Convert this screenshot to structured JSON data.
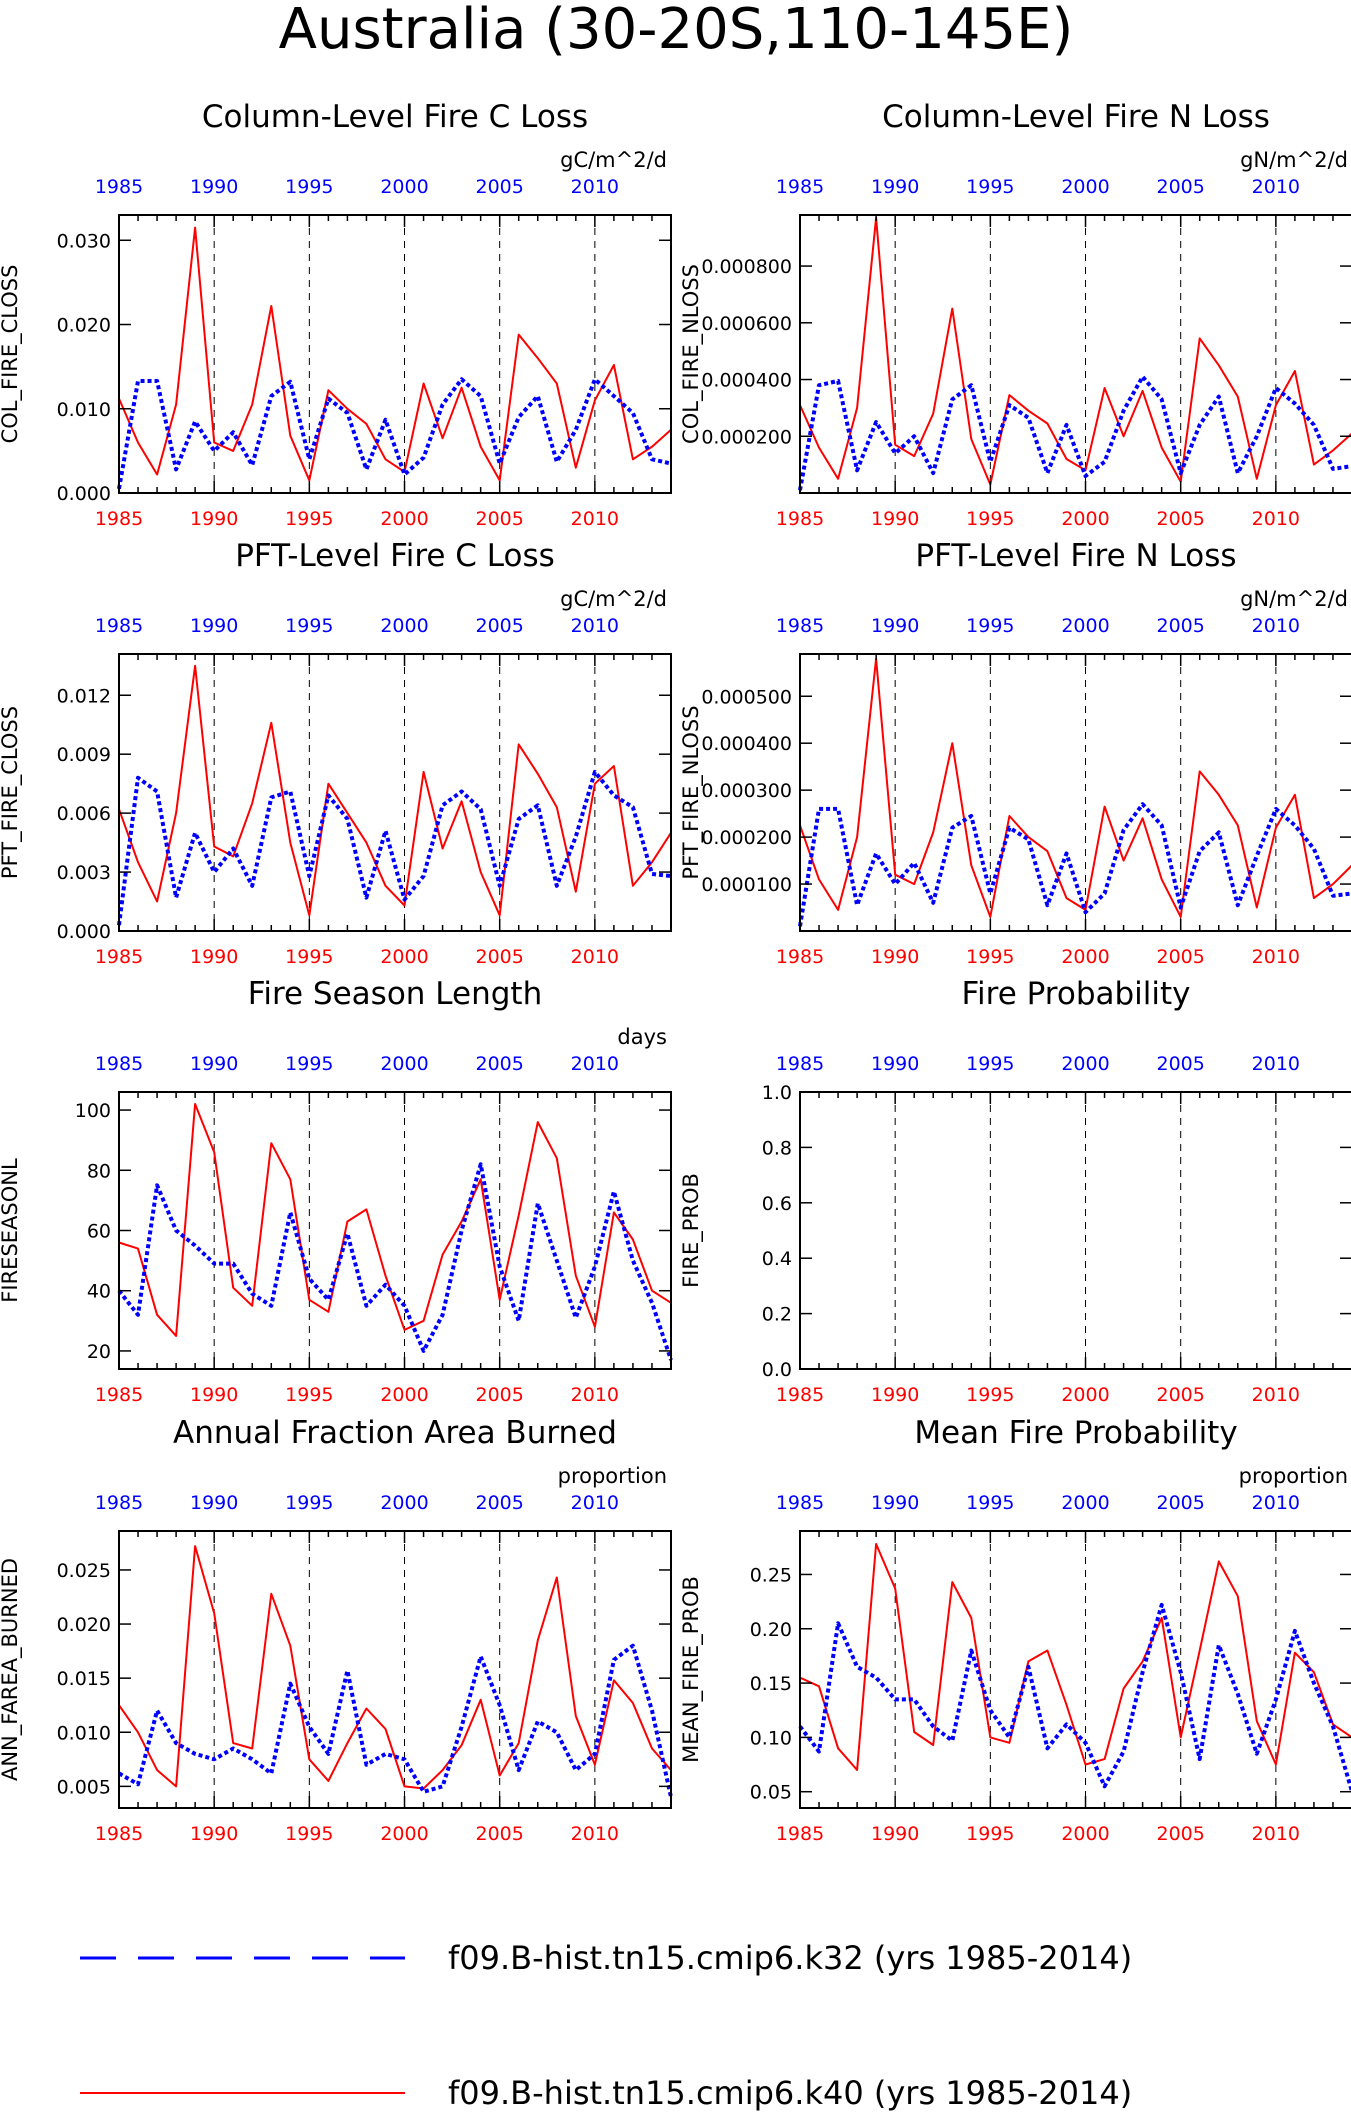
{
  "figure_title": "Australia (30-20S,110-145E)",
  "colors": {
    "case_k40": "#ff0000",
    "case_k32": "#0000ff",
    "bottom_axis": "#ff0000",
    "top_axis": "#0000ff",
    "frame": "#000000"
  },
  "legend": [
    {
      "label": "f09.B-hist.tn15.cmip6.k32 (yrs 1985-2014)",
      "color": "#0000ff",
      "style": "dotted"
    },
    {
      "label": "f09.B-hist.tn15.cmip6.k40 (yrs 1985-2014)",
      "color": "#ff0000",
      "style": "solid"
    }
  ],
  "chart_data": [
    {
      "type": "line",
      "title": "Column-Level Fire C Loss",
      "units": "gC/m^2/d",
      "ylabel": "COL_FIRE_CLOSS",
      "xlim": [
        1985,
        2014
      ],
      "ylim": [
        0,
        0.033
      ],
      "yticks": [
        "0.000",
        "0.010",
        "0.020",
        "0.030"
      ],
      "ytick_values": [
        0,
        0.01,
        0.02,
        0.03
      ],
      "xticks": [
        1985,
        1990,
        1995,
        2000,
        2005,
        2010
      ],
      "x": [
        1985,
        1986,
        1987,
        1988,
        1989,
        1990,
        1991,
        1992,
        1993,
        1994,
        1995,
        1996,
        1997,
        1998,
        1999,
        2000,
        2001,
        2002,
        2003,
        2004,
        2005,
        2006,
        2007,
        2008,
        2009,
        2010,
        2011,
        2012,
        2013,
        2014
      ],
      "series": [
        {
          "name": "f09.B-hist.tn15.cmip6.k40",
          "color": "#ff0000",
          "style": "solid",
          "values": [
            0.0112,
            0.006,
            0.0022,
            0.0105,
            0.0315,
            0.006,
            0.005,
            0.0105,
            0.0222,
            0.0068,
            0.0015,
            0.0122,
            0.01,
            0.0082,
            0.004,
            0.0025,
            0.013,
            0.0065,
            0.0125,
            0.0055,
            0.0015,
            0.0188,
            0.016,
            0.013,
            0.003,
            0.011,
            0.0152,
            0.004,
            0.0055,
            0.0075
          ]
        },
        {
          "name": "f09.B-hist.tn15.cmip6.k32",
          "color": "#0000ff",
          "style": "dotted",
          "values": [
            0.0005,
            0.0133,
            0.0133,
            0.0028,
            0.0085,
            0.005,
            0.0072,
            0.0033,
            0.0115,
            0.0132,
            0.004,
            0.0112,
            0.0095,
            0.0028,
            0.0087,
            0.0022,
            0.0042,
            0.0105,
            0.0135,
            0.0115,
            0.0035,
            0.009,
            0.0115,
            0.0037,
            0.0075,
            0.0135,
            0.0115,
            0.0095,
            0.004,
            0.0035
          ]
        }
      ]
    },
    {
      "type": "line",
      "title": "Column-Level Fire N Loss",
      "units": "gN/m^2/d",
      "ylabel": "COL_FIRE_NLOSS",
      "xlim": [
        1985,
        2014
      ],
      "ylim": [
        0,
        0.00098
      ],
      "yticks": [
        "0.000200",
        "0.000400",
        "0.000600",
        "0.000800"
      ],
      "ytick_values": [
        0.0002,
        0.0004,
        0.0006,
        0.0008
      ],
      "xticks": [
        1985,
        1990,
        1995,
        2000,
        2005,
        2010
      ],
      "x": [
        1985,
        1986,
        1987,
        1988,
        1989,
        1990,
        1991,
        1992,
        1993,
        1994,
        1995,
        1996,
        1997,
        1998,
        1999,
        2000,
        2001,
        2002,
        2003,
        2004,
        2005,
        2006,
        2007,
        2008,
        2009,
        2010,
        2011,
        2012,
        2013,
        2014
      ],
      "series": [
        {
          "name": "f09.B-hist.tn15.cmip6.k40",
          "color": "#ff0000",
          "style": "solid",
          "values": [
            0.00031,
            0.00016,
            5e-05,
            0.0003,
            0.00097,
            0.00017,
            0.00013,
            0.00028,
            0.00065,
            0.00019,
            3e-05,
            0.000345,
            0.00029,
            0.000245,
            0.00012,
            8e-05,
            0.00037,
            0.0002,
            0.00036,
            0.00016,
            4e-05,
            0.000545,
            0.00045,
            0.00034,
            5e-05,
            0.00031,
            0.00043,
            0.0001,
            0.00015,
            0.00021
          ]
        },
        {
          "name": "f09.B-hist.tn15.cmip6.k32",
          "color": "#0000ff",
          "style": "dotted",
          "values": [
            1e-05,
            0.00038,
            0.000395,
            8e-05,
            0.00025,
            0.00014,
            0.0002,
            7e-05,
            0.00033,
            0.00038,
            0.00011,
            0.00031,
            0.000265,
            7e-05,
            0.00024,
            6e-05,
            0.00011,
            0.00029,
            0.00041,
            0.00033,
            7e-05,
            0.00024,
            0.00034,
            7e-05,
            0.0002,
            0.00037,
            0.000315,
            0.00024,
            8.5e-05,
            9.5e-05
          ]
        }
      ]
    },
    {
      "type": "line",
      "title": "PFT-Level Fire C Loss",
      "units": "gC/m^2/d",
      "ylabel": "PFT_FIRE_CLOSS",
      "xlim": [
        1985,
        2014
      ],
      "ylim": [
        0,
        0.0141
      ],
      "yticks": [
        "0.000",
        "0.003",
        "0.006",
        "0.009",
        "0.012"
      ],
      "ytick_values": [
        0,
        0.003,
        0.006,
        0.009,
        0.012
      ],
      "xticks": [
        1985,
        1990,
        1995,
        2000,
        2005,
        2010
      ],
      "x": [
        1985,
        1986,
        1987,
        1988,
        1989,
        1990,
        1991,
        1992,
        1993,
        1994,
        1995,
        1996,
        1997,
        1998,
        1999,
        2000,
        2001,
        2002,
        2003,
        2004,
        2005,
        2006,
        2007,
        2008,
        2009,
        2010,
        2011,
        2012,
        2013,
        2014
      ],
      "series": [
        {
          "name": "f09.B-hist.tn15.cmip6.k40",
          "color": "#ff0000",
          "style": "solid",
          "values": [
            0.0062,
            0.0035,
            0.0015,
            0.006,
            0.0135,
            0.0043,
            0.0038,
            0.0065,
            0.0106,
            0.0045,
            0.0008,
            0.0075,
            0.006,
            0.0045,
            0.0023,
            0.0013,
            0.0081,
            0.0042,
            0.0066,
            0.003,
            0.0008,
            0.0095,
            0.008,
            0.0063,
            0.002,
            0.0075,
            0.0084,
            0.0023,
            0.0035,
            0.005
          ]
        },
        {
          "name": "f09.B-hist.tn15.cmip6.k32",
          "color": "#0000ff",
          "style": "dotted",
          "values": [
            0.0003,
            0.0078,
            0.0071,
            0.0017,
            0.005,
            0.003,
            0.0042,
            0.0023,
            0.0068,
            0.0071,
            0.0028,
            0.0069,
            0.0057,
            0.0017,
            0.0051,
            0.0016,
            0.0028,
            0.0064,
            0.0071,
            0.0062,
            0.0023,
            0.0057,
            0.0064,
            0.0023,
            0.0048,
            0.0081,
            0.0069,
            0.0063,
            0.0029,
            0.0028
          ]
        }
      ]
    },
    {
      "type": "line",
      "title": "PFT-Level Fire N Loss",
      "units": "gN/m^2/d",
      "ylabel": "PFT_FIRE_NLOSS",
      "xlim": [
        1985,
        2014
      ],
      "ylim": [
        0,
        0.00059
      ],
      "yticks": [
        "0.000100",
        "0.000200",
        "0.000300",
        "0.000400",
        "0.000500"
      ],
      "ytick_values": [
        0.0001,
        0.0002,
        0.0003,
        0.0004,
        0.0005
      ],
      "xticks": [
        1985,
        1990,
        1995,
        2000,
        2005,
        2010
      ],
      "x": [
        1985,
        1986,
        1987,
        1988,
        1989,
        1990,
        1991,
        1992,
        1993,
        1994,
        1995,
        1996,
        1997,
        1998,
        1999,
        2000,
        2001,
        2002,
        2003,
        2004,
        2005,
        2006,
        2007,
        2008,
        2009,
        2010,
        2011,
        2012,
        2013,
        2014
      ],
      "series": [
        {
          "name": "f09.B-hist.tn15.cmip6.k40",
          "color": "#ff0000",
          "style": "solid",
          "values": [
            0.000225,
            0.00011,
            4.5e-05,
            0.0002,
            0.00058,
            0.00012,
            0.0001,
            0.00021,
            0.0004,
            0.00014,
            3e-05,
            0.000245,
            0.0002,
            0.00017,
            7e-05,
            4.5e-05,
            0.000265,
            0.00015,
            0.00024,
            0.00011,
            3e-05,
            0.00034,
            0.00029,
            0.000225,
            5e-05,
            0.00022,
            0.00029,
            7e-05,
            0.0001,
            0.00014
          ]
        },
        {
          "name": "f09.B-hist.tn15.cmip6.k32",
          "color": "#0000ff",
          "style": "dotted",
          "values": [
            1e-05,
            0.00026,
            0.00026,
            5.5e-05,
            0.000165,
            0.0001,
            0.000145,
            6e-05,
            0.00022,
            0.000245,
            8e-05,
            0.00022,
            0.000195,
            5.5e-05,
            0.000165,
            4e-05,
            8e-05,
            0.000215,
            0.00027,
            0.000225,
            5e-05,
            0.00017,
            0.00021,
            5.5e-05,
            0.00016,
            0.00026,
            0.000225,
            0.000175,
            7.5e-05,
            8e-05
          ]
        }
      ]
    },
    {
      "type": "line",
      "title": "Fire Season Length",
      "units": "days",
      "ylabel": "FIRESEASONL",
      "xlim": [
        1985,
        2014
      ],
      "ylim": [
        14,
        106
      ],
      "yticks": [
        "20",
        "40",
        "60",
        "80",
        "100"
      ],
      "ytick_values": [
        20,
        40,
        60,
        80,
        100
      ],
      "xticks": [
        1985,
        1990,
        1995,
        2000,
        2005,
        2010
      ],
      "x": [
        1985,
        1986,
        1987,
        1988,
        1989,
        1990,
        1991,
        1992,
        1993,
        1994,
        1995,
        1996,
        1997,
        1998,
        1999,
        2000,
        2001,
        2002,
        2003,
        2004,
        2005,
        2006,
        2007,
        2008,
        2009,
        2010,
        2011,
        2012,
        2013,
        2014
      ],
      "series": [
        {
          "name": "f09.B-hist.tn15.cmip6.k40",
          "color": "#ff0000",
          "style": "solid",
          "values": [
            56,
            54,
            32,
            25,
            102,
            86,
            41,
            35,
            89,
            77,
            37,
            33,
            63,
            67,
            45,
            27,
            30,
            52,
            63,
            77,
            37,
            65,
            96,
            84,
            45,
            28,
            66,
            57,
            40,
            36
          ]
        },
        {
          "name": "f09.B-hist.tn15.cmip6.k32",
          "color": "#0000ff",
          "style": "dotted",
          "values": [
            40,
            32,
            75,
            60,
            55,
            49,
            49,
            39,
            35,
            66,
            44,
            37,
            59,
            35,
            42,
            35,
            20,
            32,
            60,
            82,
            48,
            30,
            69,
            50,
            31,
            48,
            73,
            50,
            36,
            17
          ]
        }
      ]
    },
    {
      "type": "line",
      "title": "Fire Probability",
      "units": "",
      "ylabel": "FIRE_PROB",
      "xlim": [
        1985,
        2014
      ],
      "ylim": [
        0,
        1
      ],
      "yticks": [
        "0.0",
        "0.2",
        "0.4",
        "0.6",
        "0.8",
        "1.0"
      ],
      "ytick_values": [
        0,
        0.2,
        0.4,
        0.6,
        0.8,
        1.0
      ],
      "xticks": [
        1985,
        1990,
        1995,
        2000,
        2005,
        2010
      ],
      "x": [],
      "series": []
    },
    {
      "type": "line",
      "title": "Annual Fraction Area Burned",
      "units": "proportion",
      "ylabel": "ANN_FAREA_BURNED",
      "xlim": [
        1985,
        2014
      ],
      "ylim": [
        0.003,
        0.0286
      ],
      "yticks": [
        "0.005",
        "0.010",
        "0.015",
        "0.020",
        "0.025"
      ],
      "ytick_values": [
        0.005,
        0.01,
        0.015,
        0.02,
        0.025
      ],
      "xticks": [
        1985,
        1990,
        1995,
        2000,
        2005,
        2010
      ],
      "x": [
        1985,
        1986,
        1987,
        1988,
        1989,
        1990,
        1991,
        1992,
        1993,
        1994,
        1995,
        1996,
        1997,
        1998,
        1999,
        2000,
        2001,
        2002,
        2003,
        2004,
        2005,
        2006,
        2007,
        2008,
        2009,
        2010,
        2011,
        2012,
        2013,
        2014
      ],
      "series": [
        {
          "name": "f09.B-hist.tn15.cmip6.k40",
          "color": "#ff0000",
          "style": "solid",
          "values": [
            0.0125,
            0.01,
            0.0065,
            0.005,
            0.0272,
            0.021,
            0.009,
            0.0085,
            0.0228,
            0.018,
            0.0075,
            0.0055,
            0.009,
            0.0122,
            0.0103,
            0.005,
            0.0048,
            0.0065,
            0.0088,
            0.013,
            0.006,
            0.009,
            0.0185,
            0.0243,
            0.0115,
            0.007,
            0.0148,
            0.0127,
            0.0085,
            0.0065
          ]
        },
        {
          "name": "f09.B-hist.tn15.cmip6.k32",
          "color": "#0000ff",
          "style": "dotted",
          "values": [
            0.0062,
            0.0052,
            0.012,
            0.009,
            0.008,
            0.0075,
            0.0085,
            0.0075,
            0.0062,
            0.0145,
            0.0105,
            0.008,
            0.0157,
            0.007,
            0.008,
            0.0075,
            0.0045,
            0.005,
            0.0105,
            0.017,
            0.0125,
            0.0065,
            0.011,
            0.01,
            0.0065,
            0.008,
            0.0167,
            0.018,
            0.012,
            0.004
          ]
        }
      ]
    },
    {
      "type": "line",
      "title": "Mean Fire Probability",
      "units": "proportion",
      "ylabel": "MEAN_FIRE_PROB",
      "xlim": [
        1985,
        2014
      ],
      "ylim": [
        0.035,
        0.29
      ],
      "yticks": [
        "0.05",
        "0.10",
        "0.15",
        "0.20",
        "0.25"
      ],
      "ytick_values": [
        0.05,
        0.1,
        0.15,
        0.2,
        0.25
      ],
      "xticks": [
        1985,
        1990,
        1995,
        2000,
        2005,
        2010
      ],
      "x": [
        1985,
        1986,
        1987,
        1988,
        1989,
        1990,
        1991,
        1992,
        1993,
        1994,
        1995,
        1996,
        1997,
        1998,
        1999,
        2000,
        2001,
        2002,
        2003,
        2004,
        2005,
        2006,
        2007,
        2008,
        2009,
        2010,
        2011,
        2012,
        2013,
        2014
      ],
      "series": [
        {
          "name": "f09.B-hist.tn15.cmip6.k40",
          "color": "#ff0000",
          "style": "solid",
          "values": [
            0.155,
            0.147,
            0.09,
            0.07,
            0.278,
            0.237,
            0.105,
            0.093,
            0.243,
            0.21,
            0.1,
            0.095,
            0.17,
            0.18,
            0.13,
            0.075,
            0.08,
            0.145,
            0.17,
            0.21,
            0.1,
            0.18,
            0.262,
            0.23,
            0.115,
            0.075,
            0.178,
            0.16,
            0.112,
            0.1
          ]
        },
        {
          "name": "f09.B-hist.tn15.cmip6.k32",
          "color": "#0000ff",
          "style": "dotted",
          "values": [
            0.11,
            0.087,
            0.205,
            0.165,
            0.155,
            0.135,
            0.135,
            0.11,
            0.097,
            0.18,
            0.125,
            0.1,
            0.165,
            0.09,
            0.112,
            0.095,
            0.055,
            0.087,
            0.16,
            0.222,
            0.16,
            0.08,
            0.185,
            0.14,
            0.085,
            0.135,
            0.198,
            0.15,
            0.11,
            0.05
          ]
        }
      ]
    }
  ]
}
